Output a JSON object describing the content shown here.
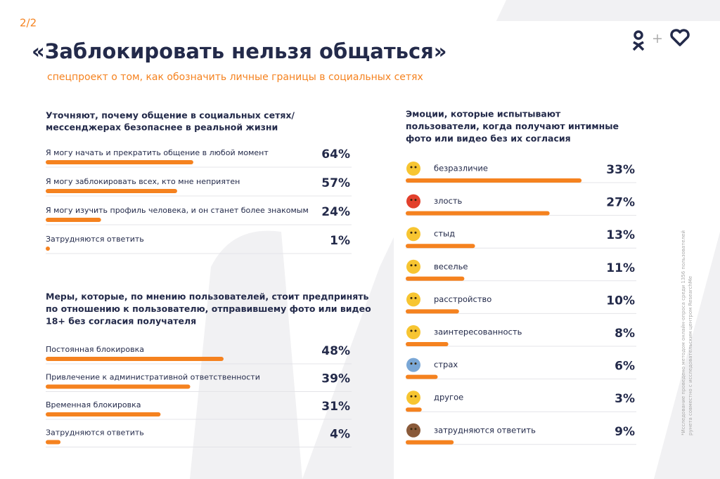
{
  "page_label": "2/2",
  "title": "«Заблокировать нельзя общаться»",
  "subtitle": "спецпроект о том, как обозначить личные границы в социальных сетях",
  "footnote_lines": [
    "*Исследование проведено методом онлайн-опроса среди 1356 пользователей",
    "рунета совместно с исследовательским центром ResearchMe"
  ],
  "chart_data": [
    {
      "type": "bar",
      "orientation": "horizontal",
      "color": "#f5821f",
      "title_lines": [
        "Уточняют, почему общение в социальных сетях/",
        "мессенджерах безопаснее в реальной жизни"
      ],
      "categories": [
        "Я могу начать и прекратить общение в любой момент",
        "Я могу заблокировать всех, кто мне неприятен",
        "Я могу изучить профиль человека, и он станет более знакомым",
        "Затрудняются ответить"
      ],
      "values": [
        64,
        57,
        24,
        1
      ],
      "value_labels": [
        "64%",
        "57%",
        "24%",
        "1%"
      ]
    },
    {
      "type": "bar",
      "orientation": "horizontal",
      "color": "#f5821f",
      "title_lines": [
        "Меры, которые, по мнению пользователей, стоит предпринять",
        "по отношению к пользователю, отправившему фото или видео",
        "18+ без согласия получателя"
      ],
      "categories": [
        "Постоянная блокировка",
        "Привлечение к административной ответственности",
        "Временная блокировка",
        "Затрудняются ответить"
      ],
      "values": [
        48,
        39,
        31,
        4
      ],
      "value_labels": [
        "48%",
        "39%",
        "31%",
        "4%"
      ]
    },
    {
      "type": "bar",
      "orientation": "horizontal",
      "color": "#f5821f",
      "title_lines": [
        "Эмоции, которые испытывают",
        "пользователи, когда получают интимные",
        "фото или видео без их согласия"
      ],
      "categories": [
        "безразличие",
        "злость",
        "стыд",
        "веселье",
        "расстройство",
        "заинтересованность",
        "страх",
        "другое",
        "затрудняются ответить"
      ],
      "values": [
        33,
        27,
        13,
        11,
        10,
        8,
        6,
        3,
        9
      ],
      "value_labels": [
        "33%",
        "27%",
        "13%",
        "11%",
        "10%",
        "8%",
        "6%",
        "3%",
        "9%"
      ]
    }
  ]
}
